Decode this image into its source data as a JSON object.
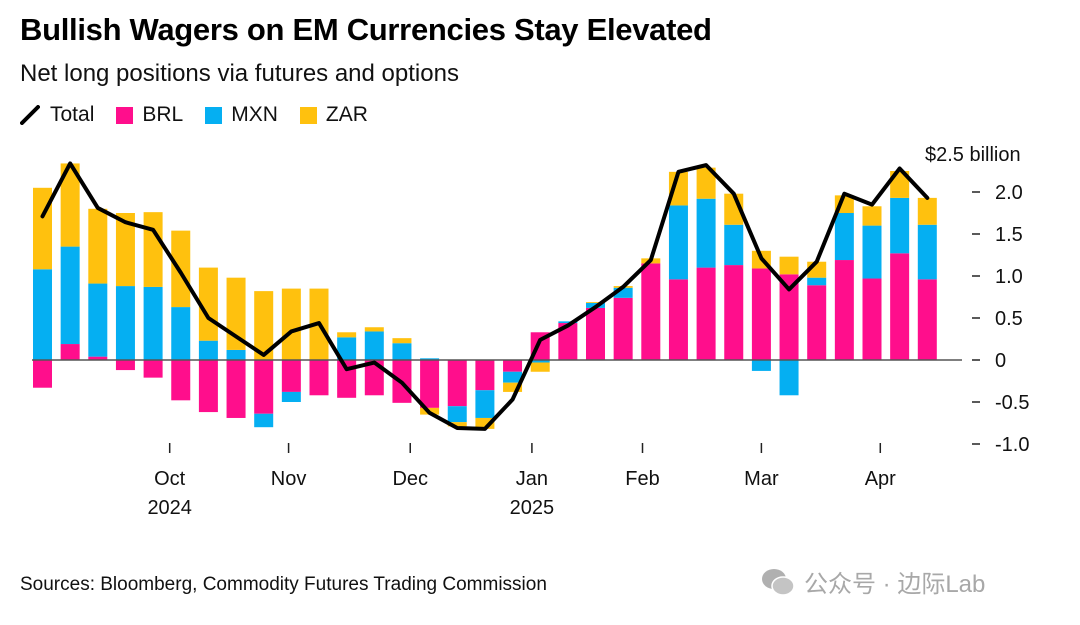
{
  "chart_data": {
    "type": "bar",
    "stacked": true,
    "title": "Bullish Wagers on EM Currencies Stay Elevated",
    "subtitle": "Net long positions via futures and options",
    "ylabel": "$2.5 billion",
    "unit_label": "$2.5 billion",
    "ylim": [
      -1.0,
      2.5
    ],
    "y_ticks": [
      {
        "value": 2.0,
        "label": "2.0"
      },
      {
        "value": 1.5,
        "label": "1.5"
      },
      {
        "value": 1.0,
        "label": "1.0"
      },
      {
        "value": 0.5,
        "label": "0.5"
      },
      {
        "value": 0,
        "label": "0"
      },
      {
        "value": -0.5,
        "label": "-0.5"
      },
      {
        "value": -1.0,
        "label": "-1.0"
      }
    ],
    "x_ticks": [
      {
        "index": 4.6,
        "label": "Oct",
        "sublabel": "2024"
      },
      {
        "index": 8.9,
        "label": "Nov",
        "sublabel": ""
      },
      {
        "index": 13.3,
        "label": "Dec",
        "sublabel": ""
      },
      {
        "index": 17.7,
        "label": "Jan",
        "sublabel": "2025"
      },
      {
        "index": 21.7,
        "label": "Feb",
        "sublabel": ""
      },
      {
        "index": 26.0,
        "label": "Mar",
        "sublabel": ""
      },
      {
        "index": 30.3,
        "label": "Apr",
        "sublabel": ""
      }
    ],
    "grid": false,
    "legend_position": "top-left",
    "legend": [
      {
        "name": "Total",
        "kind": "line",
        "color": "#000000"
      },
      {
        "name": "BRL",
        "kind": "bar",
        "color": "#ff0e8c"
      },
      {
        "name": "MXN",
        "kind": "bar",
        "color": "#05aff2"
      },
      {
        "name": "ZAR",
        "kind": "bar",
        "color": "#ffc10e"
      }
    ],
    "series": [
      {
        "name": "BRL",
        "color": "#ff0e8c",
        "values": [
          -0.33,
          0.19,
          0.04,
          -0.12,
          -0.21,
          -0.48,
          -0.62,
          -0.69,
          -0.64,
          -0.38,
          -0.42,
          -0.45,
          -0.42,
          -0.51,
          -0.57,
          -0.55,
          -0.36,
          -0.14,
          0.33,
          0.44,
          0.62,
          0.74,
          1.15,
          0.96,
          1.1,
          1.13,
          1.09,
          1.02,
          0.89,
          1.19,
          0.97,
          1.27,
          0.96
        ]
      },
      {
        "name": "MXN",
        "color": "#05aff2",
        "values": [
          1.08,
          1.16,
          0.87,
          0.88,
          0.87,
          0.63,
          0.23,
          0.12,
          -0.16,
          -0.12,
          0.0,
          0.27,
          0.34,
          0.2,
          0.02,
          -0.19,
          -0.33,
          -0.13,
          -0.03,
          0.02,
          0.06,
          0.12,
          0.0,
          0.88,
          0.82,
          0.48,
          -0.13,
          -0.42,
          0.09,
          0.56,
          0.63,
          0.66,
          0.65
        ]
      },
      {
        "name": "ZAR",
        "color": "#ffc10e",
        "values": [
          0.97,
          0.99,
          0.89,
          0.87,
          0.89,
          0.91,
          0.87,
          0.86,
          0.82,
          0.85,
          0.85,
          0.06,
          0.05,
          0.06,
          -0.08,
          -0.05,
          -0.13,
          -0.11,
          -0.11,
          0.0,
          0.01,
          0.02,
          0.06,
          0.4,
          0.37,
          0.37,
          0.21,
          0.21,
          0.19,
          0.21,
          0.23,
          0.32,
          0.32
        ]
      },
      {
        "name": "Total",
        "type": "line",
        "color": "#000000",
        "values": [
          1.71,
          2.34,
          1.81,
          1.64,
          1.55,
          1.04,
          0.5,
          0.28,
          0.06,
          0.34,
          0.44,
          -0.11,
          -0.03,
          -0.27,
          -0.63,
          -0.81,
          -0.82,
          -0.47,
          0.24,
          0.41,
          0.63,
          0.87,
          1.19,
          2.24,
          2.32,
          1.98,
          1.21,
          0.84,
          1.17,
          1.98,
          1.85,
          2.28,
          1.93
        ]
      }
    ]
  },
  "header": {
    "title": "Bullish Wagers on EM Currencies Stay Elevated",
    "subtitle": "Net long positions via futures and options"
  },
  "legend": {
    "total": "Total",
    "brl": "BRL",
    "mxn": "MXN",
    "zar": "ZAR"
  },
  "footer": {
    "source": "Sources: Bloomberg, Commodity Futures Trading Commission",
    "watermark": "公众号 · 边际Lab"
  }
}
